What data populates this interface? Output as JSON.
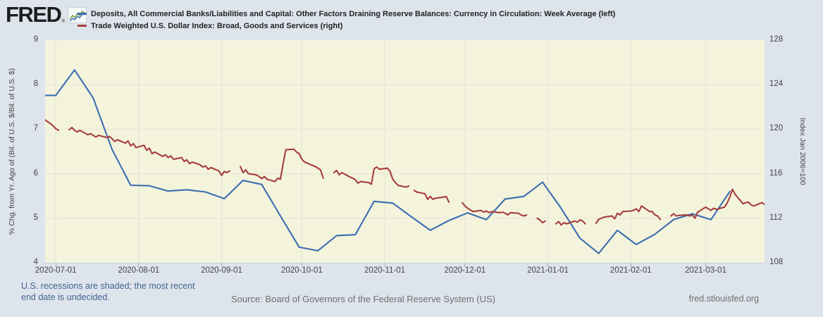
{
  "brand": {
    "logo_text": "FRED",
    "registered_mark": "®",
    "logo_icon": "line-chart-icon"
  },
  "legend": [
    {
      "label": "Deposits, All Commercial Banks/Liabilities and Capital: Other Factors Draining Reserve Balances: Currency in Circulation: Week Average (left)"
    },
    {
      "label": "Trade Weighted U.S. Dollar Index: Broad, Goods and Services (right)"
    }
  ],
  "footer": {
    "recession_note": "U.S. recessions are shaded; the most recent\nend date is undecided.",
    "source": "Source: Board of Governors of the Federal Reserve System (US)",
    "site": "fred.stlouisfed.org"
  },
  "chart_data": {
    "type": "line",
    "x_domain": [
      "2020-06-27",
      "2021-03-23"
    ],
    "x_ticks": [
      "2020-07-01",
      "2020-08-01",
      "2020-09-01",
      "2020-10-01",
      "2020-11-01",
      "2020-12-01",
      "2021-01-01",
      "2021-02-01",
      "2021-03-01"
    ],
    "left_axis": {
      "label": "% Chg. from Yr. Ago of (Bil. of U.S. $/Bil. of U.S. $)",
      "min": 4,
      "max": 9,
      "ticks": [
        9,
        8,
        7,
        6,
        5,
        4
      ]
    },
    "right_axis": {
      "label": "Index Jan 2006=100",
      "min": 108,
      "max": 128,
      "ticks": [
        128,
        124,
        120,
        116,
        112,
        108
      ]
    },
    "grid": {
      "horizontal": [
        8,
        7,
        6,
        5
      ],
      "vertical_at_x_ticks": true
    },
    "colors": {
      "plot_background": "#f4f4dc",
      "page_background": "#dde4ec",
      "gridline": "#e3e3d6",
      "deposits_line": "#3c6db0",
      "dollar_index_line": "#a63d3d"
    },
    "series": [
      {
        "name": "deposits-currency-in-circulation",
        "axis": "left",
        "color": "#3c6db0",
        "points": [
          [
            "2020-06-24",
            7.76
          ],
          [
            "2020-07-01",
            7.76
          ],
          [
            "2020-07-08",
            8.33
          ],
          [
            "2020-07-15",
            7.7
          ],
          [
            "2020-07-22",
            6.55
          ],
          [
            "2020-07-29",
            5.74
          ],
          [
            "2020-08-05",
            5.73
          ],
          [
            "2020-08-12",
            5.61
          ],
          [
            "2020-08-19",
            5.64
          ],
          [
            "2020-08-26",
            5.59
          ],
          [
            "2020-09-02",
            5.44
          ],
          [
            "2020-09-09",
            5.85
          ],
          [
            "2020-09-16",
            5.76
          ],
          [
            "2020-09-23",
            5.05
          ],
          [
            "2020-09-30",
            4.35
          ],
          [
            "2020-10-07",
            4.27
          ],
          [
            "2020-10-14",
            4.61
          ],
          [
            "2020-10-21",
            4.63
          ],
          [
            "2020-10-28",
            5.38
          ],
          [
            "2020-11-04",
            5.34
          ],
          [
            "2020-11-11",
            5.03
          ],
          [
            "2020-11-18",
            4.73
          ],
          [
            "2020-11-25",
            4.95
          ],
          [
            "2020-12-02",
            5.12
          ],
          [
            "2020-12-09",
            4.97
          ],
          [
            "2020-12-16",
            5.43
          ],
          [
            "2020-12-23",
            5.49
          ],
          [
            "2020-12-30",
            5.81
          ],
          [
            "2021-01-06",
            5.22
          ],
          [
            "2021-01-13",
            4.55
          ],
          [
            "2021-01-20",
            4.21
          ],
          [
            "2021-01-27",
            4.73
          ],
          [
            "2021-02-03",
            4.41
          ],
          [
            "2021-02-10",
            4.64
          ],
          [
            "2021-02-17",
            4.97
          ],
          [
            "2021-02-24",
            5.1
          ],
          [
            "2021-03-03",
            4.97
          ],
          [
            "2021-03-10",
            5.6
          ]
        ]
      },
      {
        "name": "trade-weighted-dollar-index",
        "axis": "right",
        "color": "#a63d3d",
        "points": [
          [
            "2020-06-26",
            121.0
          ],
          [
            "2020-06-29",
            120.5
          ],
          [
            "2020-06-30",
            120.3
          ],
          [
            "2020-07-01",
            120.05
          ],
          [
            "2020-07-02",
            119.9
          ],
          [
            "2020-07-03",
            null
          ],
          [
            "2020-07-06",
            119.95
          ],
          [
            "2020-07-07",
            120.15
          ],
          [
            "2020-07-08",
            119.9
          ],
          [
            "2020-07-09",
            119.75
          ],
          [
            "2020-07-10",
            119.9
          ],
          [
            "2020-07-13",
            119.5
          ],
          [
            "2020-07-14",
            119.6
          ],
          [
            "2020-07-15",
            119.45
          ],
          [
            "2020-07-16",
            119.3
          ],
          [
            "2020-07-17",
            119.45
          ],
          [
            "2020-07-20",
            119.25
          ],
          [
            "2020-07-21",
            119.35
          ],
          [
            "2020-07-22",
            119.15
          ],
          [
            "2020-07-23",
            118.9
          ],
          [
            "2020-07-24",
            119.05
          ],
          [
            "2020-07-27",
            118.75
          ],
          [
            "2020-07-28",
            118.95
          ],
          [
            "2020-07-29",
            118.5
          ],
          [
            "2020-07-30",
            118.7
          ],
          [
            "2020-07-31",
            118.35
          ],
          [
            "2020-08-03",
            118.55
          ],
          [
            "2020-08-04",
            118.1
          ],
          [
            "2020-08-05",
            118.3
          ],
          [
            "2020-08-06",
            117.8
          ],
          [
            "2020-08-07",
            117.95
          ],
          [
            "2020-08-10",
            117.55
          ],
          [
            "2020-08-11",
            117.7
          ],
          [
            "2020-08-12",
            117.45
          ],
          [
            "2020-08-13",
            117.6
          ],
          [
            "2020-08-14",
            117.3
          ],
          [
            "2020-08-17",
            117.45
          ],
          [
            "2020-08-18",
            117.1
          ],
          [
            "2020-08-19",
            117.25
          ],
          [
            "2020-08-20",
            116.9
          ],
          [
            "2020-08-21",
            117.05
          ],
          [
            "2020-08-24",
            116.8
          ],
          [
            "2020-08-25",
            116.6
          ],
          [
            "2020-08-26",
            116.7
          ],
          [
            "2020-08-27",
            116.4
          ],
          [
            "2020-08-28",
            116.55
          ],
          [
            "2020-08-31",
            116.25
          ],
          [
            "2020-09-01",
            115.85
          ],
          [
            "2020-09-02",
            116.2
          ],
          [
            "2020-09-03",
            116.1
          ],
          [
            "2020-09-04",
            116.25
          ],
          [
            "2020-09-07",
            null
          ],
          [
            "2020-09-08",
            116.65
          ],
          [
            "2020-09-09",
            116.1
          ],
          [
            "2020-09-10",
            116.35
          ],
          [
            "2020-09-11",
            116.0
          ],
          [
            "2020-09-14",
            115.9
          ],
          [
            "2020-09-15",
            115.75
          ],
          [
            "2020-09-16",
            115.55
          ],
          [
            "2020-09-17",
            115.75
          ],
          [
            "2020-09-18",
            115.5
          ],
          [
            "2020-09-21",
            115.3
          ],
          [
            "2020-09-22",
            115.6
          ],
          [
            "2020-09-23",
            115.5
          ],
          [
            "2020-09-24",
            116.9
          ],
          [
            "2020-09-25",
            118.15
          ],
          [
            "2020-09-28",
            118.2
          ],
          [
            "2020-09-29",
            117.95
          ],
          [
            "2020-09-30",
            117.8
          ],
          [
            "2020-10-01",
            117.3
          ],
          [
            "2020-10-02",
            117.05
          ],
          [
            "2020-10-05",
            116.75
          ],
          [
            "2020-10-06",
            116.65
          ],
          [
            "2020-10-07",
            116.5
          ],
          [
            "2020-10-08",
            116.35
          ],
          [
            "2020-10-09",
            115.6
          ],
          [
            "2020-10-12",
            null
          ],
          [
            "2020-10-13",
            116.1
          ],
          [
            "2020-10-14",
            116.3
          ],
          [
            "2020-10-15",
            115.9
          ],
          [
            "2020-10-16",
            116.1
          ],
          [
            "2020-10-19",
            115.7
          ],
          [
            "2020-10-20",
            115.6
          ],
          [
            "2020-10-21",
            115.45
          ],
          [
            "2020-10-22",
            115.15
          ],
          [
            "2020-10-23",
            115.3
          ],
          [
            "2020-10-26",
            115.2
          ],
          [
            "2020-10-27",
            115.05
          ],
          [
            "2020-10-28",
            116.45
          ],
          [
            "2020-10-29",
            116.6
          ],
          [
            "2020-10-30",
            116.4
          ],
          [
            "2020-11-02",
            116.5
          ],
          [
            "2020-11-03",
            116.2
          ],
          [
            "2020-11-04",
            115.5
          ],
          [
            "2020-11-05",
            115.2
          ],
          [
            "2020-11-06",
            114.95
          ],
          [
            "2020-11-09",
            114.8
          ],
          [
            "2020-11-10",
            114.9
          ],
          [
            "2020-11-11",
            null
          ],
          [
            "2020-11-12",
            114.5
          ],
          [
            "2020-11-13",
            114.35
          ],
          [
            "2020-11-16",
            114.2
          ],
          [
            "2020-11-17",
            113.7
          ],
          [
            "2020-11-18",
            113.95
          ],
          [
            "2020-11-19",
            113.7
          ],
          [
            "2020-11-20",
            113.8
          ],
          [
            "2020-11-23",
            113.9
          ],
          [
            "2020-11-24",
            113.95
          ],
          [
            "2020-11-25",
            113.45
          ],
          [
            "2020-11-26",
            null
          ],
          [
            "2020-11-30",
            113.4
          ],
          [
            "2020-12-01",
            113.1
          ],
          [
            "2020-12-02",
            112.9
          ],
          [
            "2020-12-03",
            112.75
          ],
          [
            "2020-12-04",
            112.6
          ],
          [
            "2020-12-07",
            112.7
          ],
          [
            "2020-12-08",
            112.55
          ],
          [
            "2020-12-09",
            112.65
          ],
          [
            "2020-12-10",
            112.5
          ],
          [
            "2020-12-11",
            112.6
          ],
          [
            "2020-12-14",
            112.5
          ],
          [
            "2020-12-15",
            112.55
          ],
          [
            "2020-12-16",
            112.45
          ],
          [
            "2020-12-17",
            112.3
          ],
          [
            "2020-12-18",
            112.5
          ],
          [
            "2020-12-21",
            112.45
          ],
          [
            "2020-12-22",
            112.3
          ],
          [
            "2020-12-23",
            112.2
          ],
          [
            "2020-12-24",
            112.3
          ],
          [
            "2020-12-25",
            null
          ],
          [
            "2020-12-28",
            112.0
          ],
          [
            "2020-12-29",
            111.85
          ],
          [
            "2020-12-30",
            111.6
          ],
          [
            "2020-12-31",
            111.75
          ],
          [
            "2021-01-01",
            null
          ],
          [
            "2021-01-04",
            111.5
          ],
          [
            "2021-01-05",
            111.7
          ],
          [
            "2021-01-06",
            111.4
          ],
          [
            "2021-01-07",
            111.6
          ],
          [
            "2021-01-08",
            111.5
          ],
          [
            "2021-01-11",
            111.75
          ],
          [
            "2021-01-12",
            111.65
          ],
          [
            "2021-01-13",
            111.85
          ],
          [
            "2021-01-14",
            111.75
          ],
          [
            "2021-01-15",
            111.5
          ],
          [
            "2021-01-18",
            null
          ],
          [
            "2021-01-19",
            111.55
          ],
          [
            "2021-01-20",
            111.9
          ],
          [
            "2021-01-21",
            112.0
          ],
          [
            "2021-01-22",
            112.1
          ],
          [
            "2021-01-25",
            112.2
          ],
          [
            "2021-01-26",
            111.95
          ],
          [
            "2021-01-27",
            112.45
          ],
          [
            "2021-01-28",
            112.3
          ],
          [
            "2021-01-29",
            112.6
          ],
          [
            "2021-02-01",
            112.65
          ],
          [
            "2021-02-02",
            112.7
          ],
          [
            "2021-02-03",
            112.85
          ],
          [
            "2021-02-04",
            112.6
          ],
          [
            "2021-02-05",
            113.1
          ],
          [
            "2021-02-08",
            112.6
          ],
          [
            "2021-02-09",
            112.6
          ],
          [
            "2021-02-10",
            112.3
          ],
          [
            "2021-02-11",
            112.2
          ],
          [
            "2021-02-12",
            111.9
          ],
          [
            "2021-02-15",
            null
          ],
          [
            "2021-02-16",
            112.2
          ],
          [
            "2021-02-17",
            112.4
          ],
          [
            "2021-02-18",
            112.2
          ],
          [
            "2021-02-19",
            112.25
          ],
          [
            "2021-02-22",
            112.3
          ],
          [
            "2021-02-23",
            112.2
          ],
          [
            "2021-02-24",
            112.3
          ],
          [
            "2021-02-25",
            112.0
          ],
          [
            "2021-02-26",
            112.55
          ],
          [
            "2021-03-01",
            113.0
          ],
          [
            "2021-03-02",
            112.85
          ],
          [
            "2021-03-03",
            112.7
          ],
          [
            "2021-03-04",
            112.9
          ],
          [
            "2021-03-05",
            112.8
          ],
          [
            "2021-03-08",
            113.0
          ],
          [
            "2021-03-09",
            113.35
          ],
          [
            "2021-03-10",
            113.9
          ],
          [
            "2021-03-11",
            114.6
          ],
          [
            "2021-03-12",
            114.15
          ],
          [
            "2021-03-15",
            113.3
          ],
          [
            "2021-03-16",
            113.4
          ],
          [
            "2021-03-17",
            113.45
          ],
          [
            "2021-03-18",
            113.2
          ],
          [
            "2021-03-19",
            113.1
          ],
          [
            "2021-03-22",
            113.4
          ],
          [
            "2021-03-23",
            113.25
          ]
        ]
      }
    ]
  }
}
